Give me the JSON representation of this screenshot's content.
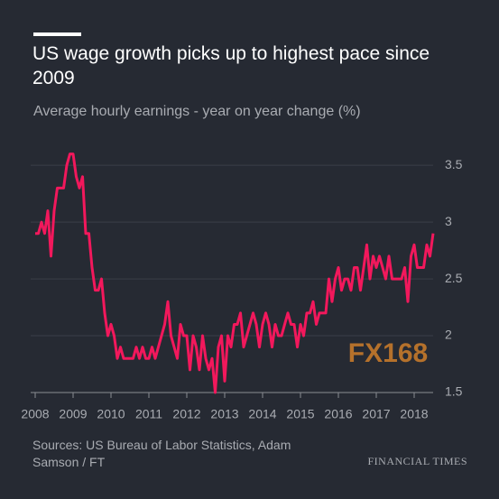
{
  "chart_data": {
    "type": "line",
    "title": "US wage growth picks up to highest pace since 2009",
    "subtitle": "Average hourly earnings - year on year change (%)",
    "source": "Sources: US Bureau of Labor Statistics, Adam Samson / FT",
    "brand": "FINANCIAL TIMES",
    "watermark": "FX168",
    "xlim": [
      2008,
      2018.5
    ],
    "ylim": [
      1.5,
      3.7
    ],
    "xticks": [
      2008,
      2009,
      2010,
      2011,
      2012,
      2013,
      2014,
      2015,
      2016,
      2017,
      2018
    ],
    "yticks": [
      1.5,
      2,
      2.5,
      3,
      3.5
    ],
    "grid": true,
    "x": [
      2008,
      2008.083,
      2008.167,
      2008.25,
      2008.333,
      2008.417,
      2008.5,
      2008.583,
      2008.667,
      2008.75,
      2008.833,
      2008.917,
      2009,
      2009.083,
      2009.167,
      2009.25,
      2009.333,
      2009.417,
      2009.5,
      2009.583,
      2009.667,
      2009.75,
      2009.833,
      2009.917,
      2010,
      2010.083,
      2010.167,
      2010.25,
      2010.333,
      2010.417,
      2010.5,
      2010.583,
      2010.667,
      2010.75,
      2010.833,
      2010.917,
      2011,
      2011.083,
      2011.167,
      2011.25,
      2011.333,
      2011.417,
      2011.5,
      2011.583,
      2011.667,
      2011.75,
      2011.833,
      2011.917,
      2012,
      2012.083,
      2012.167,
      2012.25,
      2012.333,
      2012.417,
      2012.5,
      2012.583,
      2012.667,
      2012.75,
      2012.833,
      2012.917,
      2013,
      2013.083,
      2013.167,
      2013.25,
      2013.333,
      2013.417,
      2013.5,
      2013.583,
      2013.667,
      2013.75,
      2013.833,
      2013.917,
      2014,
      2014.083,
      2014.167,
      2014.25,
      2014.333,
      2014.417,
      2014.5,
      2014.583,
      2014.667,
      2014.75,
      2014.833,
      2014.917,
      2015,
      2015.083,
      2015.167,
      2015.25,
      2015.333,
      2015.417,
      2015.5,
      2015.583,
      2015.667,
      2015.75,
      2015.833,
      2015.917,
      2016,
      2016.083,
      2016.167,
      2016.25,
      2016.333,
      2016.417,
      2016.5,
      2016.583,
      2016.667,
      2016.75,
      2016.833,
      2016.917,
      2017,
      2017.083,
      2017.167,
      2017.25,
      2017.333,
      2017.417,
      2017.5,
      2017.583,
      2017.667,
      2017.75,
      2017.833,
      2017.917,
      2018,
      2018.083,
      2018.167,
      2018.25,
      2018.333,
      2018.417,
      2018.5
    ],
    "series": [
      {
        "name": "Average hourly earnings",
        "color": "#f2185c",
        "values": [
          2.9,
          2.9,
          3.0,
          2.9,
          3.1,
          2.7,
          3.1,
          3.3,
          3.3,
          3.3,
          3.5,
          3.6,
          3.6,
          3.4,
          3.3,
          3.4,
          2.9,
          2.9,
          2.6,
          2.4,
          2.4,
          2.5,
          2.2,
          2.0,
          2.1,
          2.0,
          1.8,
          1.9,
          1.8,
          1.8,
          1.8,
          1.8,
          1.9,
          1.8,
          1.9,
          1.8,
          1.8,
          1.9,
          1.8,
          1.9,
          2.0,
          2.1,
          2.3,
          2.0,
          1.9,
          1.8,
          2.1,
          2.0,
          2.0,
          1.7,
          2.0,
          1.9,
          1.7,
          2.0,
          1.8,
          1.7,
          1.8,
          1.5,
          1.9,
          2.0,
          1.6,
          2.0,
          1.9,
          2.1,
          2.1,
          2.2,
          1.9,
          2.0,
          2.1,
          2.2,
          2.1,
          1.9,
          2.1,
          2.2,
          2.1,
          1.9,
          2.1,
          2.0,
          2.0,
          2.1,
          2.2,
          2.1,
          2.1,
          1.9,
          2.1,
          2.0,
          2.2,
          2.2,
          2.3,
          2.1,
          2.2,
          2.2,
          2.2,
          2.5,
          2.3,
          2.5,
          2.6,
          2.4,
          2.5,
          2.5,
          2.4,
          2.6,
          2.6,
          2.4,
          2.6,
          2.8,
          2.5,
          2.7,
          2.6,
          2.7,
          2.6,
          2.5,
          2.7,
          2.5,
          2.5,
          2.5,
          2.5,
          2.6,
          2.3,
          2.7,
          2.8,
          2.6,
          2.6,
          2.6,
          2.8,
          2.7,
          2.9
        ]
      }
    ]
  }
}
